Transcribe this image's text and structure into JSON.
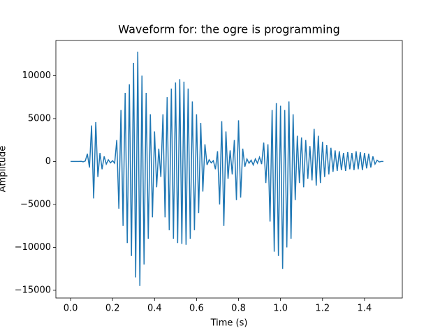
{
  "chart_data": {
    "type": "line",
    "title": "Waveform for: the ogre is programming",
    "x_label": "Time (s)",
    "y_label": "Amplitude",
    "color": "#1f77b4",
    "xlim": [
      -0.07,
      1.58
    ],
    "ylim": [
      -15900,
      14100
    ],
    "xticks": [
      {
        "value": 0,
        "label": "0.0"
      },
      0.2,
      0.4,
      0.6,
      0.8,
      {
        "value": 1,
        "label": "1.0"
      },
      1.2,
      1.4
    ],
    "yticks": [
      {
        "value": -15000,
        "label": "−15000"
      },
      {
        "value": -10000,
        "label": "−10000"
      },
      {
        "value": -5000,
        "label": "−5000"
      },
      0,
      5000,
      10000
    ],
    "x": [
      0,
      0.01,
      0.02,
      0.03,
      0.04,
      0.05,
      0.06,
      0.07,
      0.08,
      0.09,
      0.1,
      0.11,
      0.12,
      0.13,
      0.14,
      0.15,
      0.16,
      0.17,
      0.18,
      0.19,
      0.2,
      0.21,
      0.22,
      0.23,
      0.24,
      0.25,
      0.26,
      0.27,
      0.28,
      0.29,
      0.3,
      0.31,
      0.32,
      0.33,
      0.34,
      0.35,
      0.36,
      0.37,
      0.38,
      0.39,
      0.4,
      0.41,
      0.42,
      0.43,
      0.44,
      0.45,
      0.46,
      0.47,
      0.48,
      0.49,
      0.5,
      0.51,
      0.52,
      0.53,
      0.54,
      0.55,
      0.56,
      0.57,
      0.58,
      0.59,
      0.6,
      0.61,
      0.62,
      0.63,
      0.64,
      0.65,
      0.66,
      0.67,
      0.68,
      0.69,
      0.7,
      0.71,
      0.72,
      0.73,
      0.74,
      0.75,
      0.76,
      0.77,
      0.78,
      0.79,
      0.8,
      0.81,
      0.82,
      0.83,
      0.84,
      0.85,
      0.86,
      0.87,
      0.88,
      0.89,
      0.9,
      0.91,
      0.92,
      0.93,
      0.94,
      0.95,
      0.96,
      0.97,
      0.98,
      0.99,
      1,
      1.01,
      1.02,
      1.03,
      1.04,
      1.05,
      1.06,
      1.07,
      1.08,
      1.09,
      1.1,
      1.11,
      1.12,
      1.13,
      1.14,
      1.15,
      1.16,
      1.17,
      1.18,
      1.19,
      1.2,
      1.21,
      1.22,
      1.23,
      1.24,
      1.25,
      1.26,
      1.27,
      1.28,
      1.29,
      1.3,
      1.31,
      1.32,
      1.33,
      1.34,
      1.35,
      1.36,
      1.37,
      1.38,
      1.39,
      1.4,
      1.41,
      1.42,
      1.43,
      1.44,
      1.45,
      1.46,
      1.47,
      1.48,
      1.49
    ],
    "values": [
      0,
      0,
      0,
      0,
      0,
      20,
      -30,
      60,
      900,
      -700,
      4200,
      -4300,
      4600,
      -1800,
      1000,
      -900,
      600,
      -300,
      200,
      -150,
      100,
      -200,
      2500,
      -5500,
      6000,
      -7500,
      8000,
      -9500,
      9000,
      -11000,
      11500,
      -13500,
      12800,
      -14500,
      10000,
      -12000,
      8000,
      -9000,
      5500,
      -6500,
      3500,
      -3000,
      1500,
      -1800,
      5500,
      -6500,
      7500,
      -8000,
      8500,
      -9000,
      9200,
      -9500,
      9600,
      -9600,
      9300,
      -9700,
      8500,
      -9000,
      7000,
      -8000,
      5500,
      -6000,
      4500,
      -3500,
      2000,
      -400,
      200,
      -150,
      100,
      -900,
      1200,
      -5000,
      4700,
      -7500,
      3500,
      -2000,
      1300,
      -1500,
      2500,
      -4500,
      4800,
      -4200,
      1500,
      -600,
      300,
      -200,
      150,
      -400,
      300,
      -200,
      500,
      -300,
      2200,
      -2500,
      2000,
      -7000,
      6000,
      -10500,
      6800,
      -11000,
      6500,
      -12500,
      6000,
      -10000,
      7000,
      -9000,
      5500,
      -4500,
      3000,
      -2500,
      2800,
      -3000,
      2500,
      -2000,
      1800,
      -2200,
      3800,
      -2800,
      3000,
      -2500,
      2300,
      -1800,
      1900,
      -1500,
      1600,
      -1200,
      1300,
      -1100,
      1200,
      -1000,
      1000,
      -1100,
      1100,
      -900,
      1000,
      -1000,
      1200,
      -900,
      1100,
      -1000,
      1000,
      -800,
      900,
      -700,
      600,
      -300,
      150,
      -50,
      0,
      0
    ]
  }
}
